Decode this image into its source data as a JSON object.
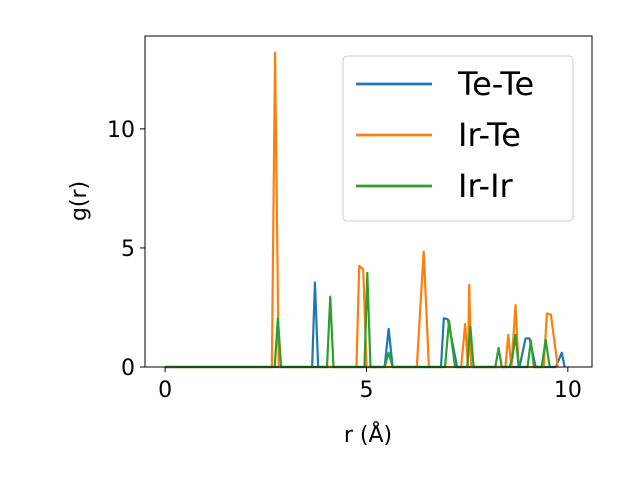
{
  "chart_data": {
    "type": "line",
    "title": "",
    "xlabel": "r (Å)",
    "ylabel": "g(r)",
    "xlim": [
      -0.5,
      10.6
    ],
    "ylim": [
      0,
      13.9
    ],
    "xticks": [
      0,
      5,
      10
    ],
    "yticks": [
      0,
      5,
      10
    ],
    "grid": false,
    "legend_position": "top-right",
    "series": [
      {
        "name": "Te-Te",
        "color": "#1f77b4",
        "points": [
          [
            0,
            0
          ],
          [
            3.65,
            0
          ],
          [
            3.72,
            3.55
          ],
          [
            3.8,
            0
          ],
          [
            5.45,
            0
          ],
          [
            5.55,
            1.6
          ],
          [
            5.65,
            0
          ],
          [
            6.85,
            0
          ],
          [
            6.92,
            2.05
          ],
          [
            7.02,
            2.0
          ],
          [
            7.25,
            0
          ],
          [
            8.8,
            0
          ],
          [
            8.95,
            1.2
          ],
          [
            9.05,
            1.2
          ],
          [
            9.2,
            0
          ],
          [
            9.7,
            0
          ],
          [
            9.85,
            0.6
          ],
          [
            9.92,
            0
          ]
        ]
      },
      {
        "name": "Ir-Te",
        "color": "#ff7f0e",
        "points": [
          [
            0,
            0
          ],
          [
            2.65,
            0
          ],
          [
            2.73,
            13.2
          ],
          [
            2.82,
            0
          ],
          [
            4.75,
            0
          ],
          [
            4.82,
            4.25
          ],
          [
            4.92,
            4.1
          ],
          [
            5.0,
            0
          ],
          [
            6.25,
            0
          ],
          [
            6.42,
            4.85
          ],
          [
            6.55,
            0
          ],
          [
            7.35,
            0
          ],
          [
            7.45,
            1.8
          ],
          [
            7.52,
            0
          ],
          [
            7.55,
            3.45
          ],
          [
            7.6,
            0
          ],
          [
            8.45,
            0
          ],
          [
            8.52,
            1.35
          ],
          [
            8.6,
            0
          ],
          [
            8.7,
            2.6
          ],
          [
            8.78,
            0
          ],
          [
            9.4,
            0
          ],
          [
            9.48,
            2.25
          ],
          [
            9.58,
            2.2
          ],
          [
            9.75,
            0
          ]
        ]
      },
      {
        "name": "Ir-Ir",
        "color": "#2ca02c",
        "points": [
          [
            0,
            0
          ],
          [
            2.72,
            0
          ],
          [
            2.8,
            2.05
          ],
          [
            2.88,
            0
          ],
          [
            4.02,
            0
          ],
          [
            4.1,
            2.95
          ],
          [
            4.18,
            0
          ],
          [
            4.95,
            0
          ],
          [
            5.02,
            3.95
          ],
          [
            5.1,
            0
          ],
          [
            5.45,
            0
          ],
          [
            5.55,
            0.6
          ],
          [
            5.65,
            0
          ],
          [
            6.95,
            0
          ],
          [
            7.05,
            1.95
          ],
          [
            7.2,
            0
          ],
          [
            7.5,
            0
          ],
          [
            7.58,
            1.7
          ],
          [
            7.66,
            0
          ],
          [
            8.2,
            0
          ],
          [
            8.28,
            0.8
          ],
          [
            8.36,
            0
          ],
          [
            8.55,
            0
          ],
          [
            8.62,
            0.35
          ],
          [
            8.7,
            1.35
          ],
          [
            8.78,
            0
          ],
          [
            9.0,
            0
          ],
          [
            9.08,
            1.1
          ],
          [
            9.16,
            0
          ],
          [
            9.35,
            0
          ],
          [
            9.45,
            1.15
          ],
          [
            9.55,
            0
          ]
        ]
      }
    ]
  }
}
